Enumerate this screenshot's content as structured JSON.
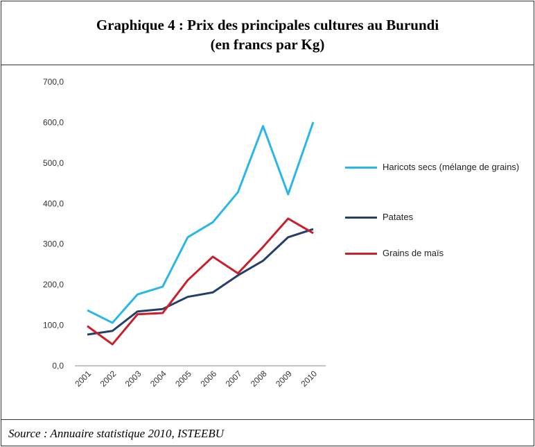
{
  "chart_data": {
    "type": "line",
    "title": "Graphique 4 : Prix des principales cultures au Burundi",
    "subtitle": "(en francs par Kg)",
    "source": "Source : Annuaire statistique 2010, ISTEEBU",
    "categories": [
      "2001",
      "2002",
      "2003",
      "2004",
      "2005",
      "2006",
      "2007",
      "2008",
      "2009",
      "2010"
    ],
    "series": [
      {
        "name": "Haricots secs (mélange de grains)",
        "color": "#29b6e8",
        "values": [
          137,
          106,
          176,
          195,
          317,
          354,
          428,
          591,
          423,
          601
        ]
      },
      {
        "name": "Patates",
        "color": "#243f6a",
        "values": [
          77,
          86,
          134,
          140,
          170,
          181,
          223,
          259,
          317,
          337
        ]
      },
      {
        "name": "Grains de maïs",
        "color": "#c8202a",
        "values": [
          98,
          53,
          127,
          130,
          211,
          269,
          228,
          293,
          363,
          327
        ]
      }
    ],
    "ylim": [
      0,
      700
    ],
    "yticks": [
      {
        "value": 0,
        "label": "0,0"
      },
      {
        "value": 100,
        "label": "100,0"
      },
      {
        "value": 200,
        "label": "200,0"
      },
      {
        "value": 300,
        "label": "300,0"
      },
      {
        "value": 400,
        "label": "400,0"
      },
      {
        "value": 500,
        "label": "500,0"
      },
      {
        "value": 600,
        "label": "600,0"
      },
      {
        "value": 700,
        "label": "700,0"
      }
    ],
    "legend": "right"
  }
}
